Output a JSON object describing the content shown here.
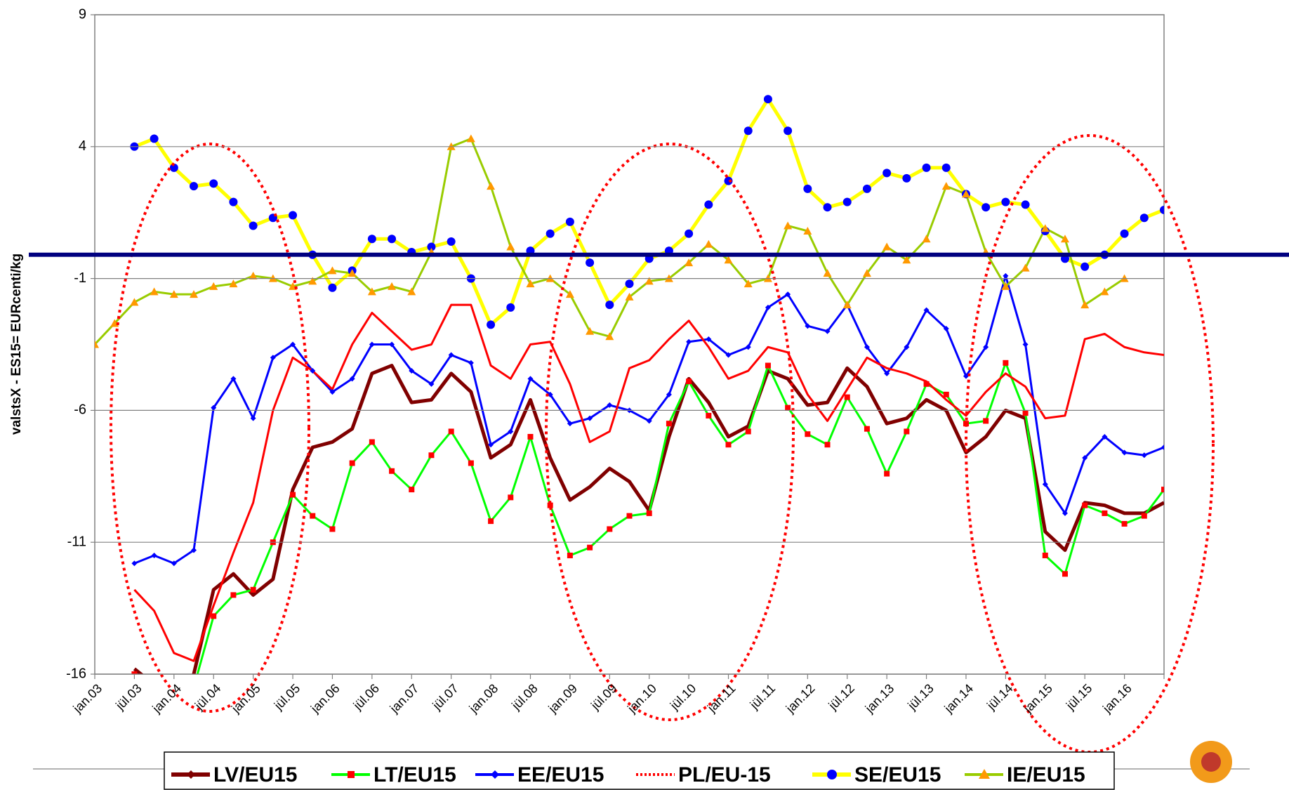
{
  "chart_data": {
    "type": "line",
    "y_label": "valstsX - ES15= EURcenti/kg",
    "categories": [
      "jan.03",
      null,
      "jül.03",
      null,
      "jan.04",
      null,
      "jül.04",
      null,
      "jan.05",
      null,
      "jül.05",
      null,
      "jan.06",
      null,
      "jül.06",
      null,
      "jan.07",
      null,
      "jül.07",
      null,
      "jan.08",
      null,
      "jül.08",
      null,
      "jan.09",
      null,
      "jül.09",
      null,
      "jan.10",
      null,
      "jül.10",
      null,
      "jan.11",
      null,
      "jül.11",
      null,
      "jan.12",
      null,
      "jül.12",
      null,
      "jan.13",
      null,
      "jül.13",
      null,
      "jan.14",
      null,
      "jül.14",
      null,
      "jan.15",
      null,
      "jül.15",
      null,
      "jan.16",
      null,
      null
    ],
    "ylim": [
      -16,
      9
    ],
    "yticks": [
      -16,
      -11,
      -6,
      -1,
      4,
      9
    ],
    "grid": true,
    "reference_line": {
      "value": -0.1,
      "color": "#000080"
    },
    "series": [
      {
        "name": "LV/EU15",
        "color": "#800000",
        "width": 5,
        "marker": "none",
        "values": [
          null,
          null,
          -15.8,
          -16.4,
          -17,
          -16.0,
          -12.8,
          -12.2,
          -13.0,
          -12.4,
          -9.0,
          -7.4,
          -7.2,
          -6.7,
          -4.6,
          -4.3,
          -5.7,
          -5.6,
          -4.6,
          -5.3,
          -7.8,
          -7.3,
          -5.6,
          -7.8,
          -9.4,
          -8.9,
          -8.2,
          -8.7,
          -9.8,
          -7.0,
          -4.8,
          -5.7,
          -7.0,
          -6.6,
          -4.5,
          -4.8,
          -5.8,
          -5.7,
          -4.4,
          -5.1,
          -6.5,
          -6.3,
          -5.6,
          -6.0,
          -7.6,
          -7.0,
          -6.0,
          -6.3,
          -10.6,
          -11.3,
          -9.5,
          -9.6,
          -9.9,
          -9.9,
          -9.5
        ]
      },
      {
        "name": "LT/EU15",
        "color": "#00ff00",
        "width": 3,
        "marker": "square",
        "marker_color": "#ff0000",
        "values": [
          null,
          null,
          -16.0,
          -16.6,
          -17,
          -16.5,
          -13.8,
          -13.0,
          -12.8,
          -11.0,
          -9.2,
          -10.0,
          -10.5,
          -8.0,
          -7.2,
          -8.3,
          -9.0,
          -7.7,
          -6.8,
          -8.0,
          -10.2,
          -9.3,
          -7.0,
          -9.6,
          -11.5,
          -11.2,
          -10.5,
          -10.0,
          -9.9,
          -6.5,
          -4.9,
          -6.2,
          -7.3,
          -6.8,
          -4.3,
          -5.9,
          -6.9,
          -7.3,
          -5.5,
          -6.7,
          -8.4,
          -6.8,
          -5.0,
          -5.4,
          -6.5,
          -6.4,
          -4.2,
          -6.1,
          -11.5,
          -12.2,
          -9.6,
          -9.9,
          -10.3,
          -10.0,
          -9.0
        ]
      },
      {
        "name": "EE/EU15",
        "color": "#0000ff",
        "width": 3,
        "marker": "diamond",
        "marker_color": "#0000ff",
        "values": [
          null,
          null,
          -11.8,
          -11.5,
          -11.8,
          -11.3,
          -5.9,
          -4.8,
          -6.3,
          -4.0,
          -3.5,
          -4.5,
          -5.3,
          -4.8,
          -3.5,
          -3.5,
          -4.5,
          -5.0,
          -3.9,
          -4.2,
          -7.3,
          -6.8,
          -4.8,
          -5.4,
          -6.5,
          -6.3,
          -5.8,
          -6.0,
          -6.4,
          -5.4,
          -3.4,
          -3.3,
          -3.9,
          -3.6,
          -2.1,
          -1.6,
          -2.8,
          -3.0,
          -2.0,
          -3.6,
          -4.6,
          -3.6,
          -2.2,
          -2.9,
          -4.7,
          -3.6,
          -0.9,
          -3.5,
          -8.8,
          -9.9,
          -7.8,
          -7.0,
          -7.6,
          -7.7,
          -7.4
        ]
      },
      {
        "name": "PL/EU-15",
        "color": "#ff0000",
        "width": 3,
        "marker": "none",
        "values": [
          null,
          null,
          -12.8,
          -13.6,
          -15.2,
          -15.5,
          -13.4,
          -11.4,
          -9.5,
          -6.0,
          -4.0,
          -4.5,
          -5.2,
          -3.5,
          -2.3,
          -3.0,
          -3.7,
          -3.5,
          -2.0,
          -2.0,
          -4.3,
          -4.8,
          -3.5,
          -3.4,
          -5.0,
          -7.2,
          -6.8,
          -4.4,
          -4.1,
          -3.3,
          -2.6,
          -3.6,
          -4.8,
          -4.5,
          -3.6,
          -3.8,
          -5.4,
          -6.4,
          -5.2,
          -4.0,
          -4.4,
          -4.6,
          -4.9,
          -5.6,
          -6.2,
          -5.3,
          -4.6,
          -5.1,
          -6.3,
          -6.2,
          -3.3,
          -3.1,
          -3.6,
          -3.8,
          -3.9
        ]
      },
      {
        "name": "SE/EU15",
        "color": "#ffff00",
        "width": 5,
        "marker": "circle",
        "marker_color": "#0000ff",
        "values": [
          null,
          null,
          4.0,
          4.3,
          3.2,
          2.5,
          2.6,
          1.9,
          1.0,
          1.3,
          1.4,
          -0.1,
          -1.35,
          -0.7,
          0.5,
          0.5,
          0,
          0.2,
          0.4,
          -1.0,
          -2.75,
          -2.1,
          0.05,
          0.7,
          1.15,
          -0.4,
          -2.0,
          -1.2,
          -0.25,
          0.05,
          0.7,
          1.8,
          2.7,
          4.6,
          5.8,
          4.6,
          2.4,
          1.7,
          1.9,
          2.4,
          3.0,
          2.8,
          3.2,
          3.2,
          2.2,
          1.7,
          1.9,
          1.8,
          0.8,
          -0.25,
          -0.55,
          -0.1,
          0.7,
          1.3,
          1.6
        ]
      },
      {
        "name": "IE/EU15",
        "color": "#99cc00",
        "width": 3,
        "marker": "triangle",
        "marker_color": "#ff9900",
        "values": [
          -3.5,
          -2.7,
          -1.9,
          -1.5,
          -1.6,
          -1.6,
          -1.3,
          -1.2,
          -0.9,
          -1.0,
          -1.3,
          -1.1,
          -0.7,
          -0.8,
          -1.5,
          -1.3,
          -1.5,
          0.0,
          4.0,
          4.3,
          2.5,
          0.2,
          -1.2,
          -1.0,
          -1.6,
          -3.0,
          -3.2,
          -1.7,
          -1.1,
          -1.0,
          -0.4,
          0.3,
          -0.3,
          -1.2,
          -1.0,
          1.0,
          0.8,
          -0.8,
          -2.0,
          -0.8,
          0.2,
          -0.3,
          0.5,
          2.5,
          2.2,
          0.0,
          -1.3,
          -0.6,
          0.9,
          0.5,
          -2.0,
          -1.5,
          -1.0,
          null,
          null
        ]
      }
    ]
  }
}
